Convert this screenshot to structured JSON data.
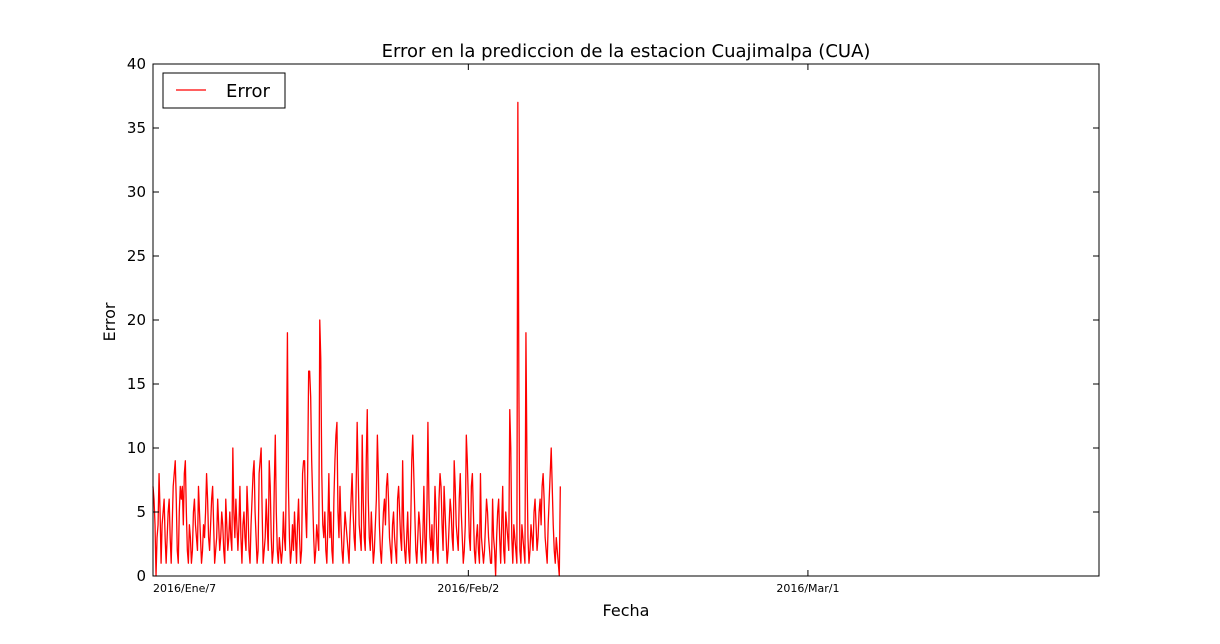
{
  "chart_data": {
    "type": "line",
    "title": "Error en la prediccion de la estacion Cuajimalpa (CUA)",
    "xlabel": "Fecha",
    "ylabel": "Error",
    "ylim": [
      0,
      40
    ],
    "yticks": [
      0,
      5,
      10,
      15,
      20,
      25,
      30,
      35,
      40
    ],
    "xlim": [
      "2016-01-07T00:00",
      "2016-03-25T00:00"
    ],
    "xticks": [
      {
        "date": "2016-01-07T00:00",
        "label": "2016/Ene/7"
      },
      {
        "date": "2016-02-02T00:00",
        "label": "2016/Feb/2"
      },
      {
        "date": "2016-03-01T00:00",
        "label": "2016/Mar/1"
      }
    ],
    "grid": false,
    "legend": {
      "position": "top-left",
      "entries": [
        "Error"
      ]
    },
    "series": [
      {
        "name": "Error",
        "color": "#ff0000",
        "start": "2016-01-07T00:00",
        "step_hours": 2,
        "values": [
          7,
          6,
          4,
          0,
          3,
          4,
          8,
          5,
          1,
          4,
          5,
          6,
          3,
          1,
          3,
          5,
          6,
          3,
          1,
          4,
          7,
          8,
          9,
          6,
          2,
          1,
          5,
          7,
          6,
          7,
          4,
          8,
          9,
          5,
          2,
          1,
          4,
          3,
          1,
          2,
          5,
          6,
          4,
          3,
          2,
          7,
          5,
          3,
          1,
          2,
          4,
          3,
          5,
          8,
          6,
          3,
          2,
          4,
          6,
          7,
          4,
          1,
          2,
          3,
          6,
          4,
          2,
          3,
          5,
          4,
          2,
          1,
          6,
          4,
          2,
          3,
          5,
          3,
          2,
          10,
          5,
          3,
          6,
          4,
          2,
          4,
          7,
          3,
          1,
          4,
          5,
          3,
          2,
          7,
          5,
          2,
          1,
          4,
          6,
          8,
          9,
          5,
          3,
          1,
          2,
          8,
          9,
          10,
          5,
          1,
          2,
          3,
          6,
          4,
          2,
          9,
          7,
          3,
          1,
          2,
          7,
          11,
          5,
          2,
          1,
          3,
          2,
          1,
          2,
          5,
          3,
          2,
          9,
          19,
          7,
          3,
          1,
          2,
          4,
          2,
          5,
          3,
          1,
          4,
          6,
          3,
          1,
          2,
          8,
          9,
          9,
          5,
          3,
          8,
          16,
          16,
          14,
          9,
          6,
          3,
          1,
          2,
          4,
          3,
          2,
          20,
          17,
          8,
          4,
          3,
          5,
          2,
          1,
          4,
          8,
          3,
          5,
          2,
          1,
          6,
          9,
          11,
          12,
          5,
          3,
          7,
          4,
          2,
          1,
          3,
          5,
          4,
          3,
          2,
          1,
          4,
          6,
          8,
          5,
          3,
          2,
          7,
          12,
          8,
          4,
          3,
          2,
          11,
          6,
          3,
          2,
          9,
          13,
          6,
          3,
          2,
          5,
          3,
          1,
          2,
          4,
          6,
          11,
          8,
          4,
          2,
          1,
          3,
          5,
          6,
          4,
          7,
          8,
          6,
          3,
          2,
          1,
          4,
          5,
          3,
          2,
          1,
          6,
          7,
          5,
          3,
          2,
          9,
          4,
          2,
          1,
          3,
          5,
          2,
          1,
          4,
          9,
          11,
          8,
          5,
          2,
          1,
          3,
          5,
          4,
          2,
          1,
          3,
          7,
          3,
          1,
          5,
          12,
          6,
          3,
          2,
          4,
          1,
          3,
          7,
          5,
          2,
          1,
          6,
          8,
          7,
          4,
          2,
          7,
          5,
          3,
          1,
          2,
          4,
          6,
          5,
          3,
          2,
          9,
          7,
          4,
          3,
          2,
          6,
          8,
          5,
          3,
          1,
          2,
          4,
          11,
          9,
          6,
          3,
          2,
          7,
          8,
          5,
          2,
          1,
          3,
          4,
          2,
          1,
          8,
          3,
          2,
          1,
          2,
          4,
          6,
          5,
          3,
          2,
          1,
          1,
          6,
          3,
          2,
          0,
          3,
          5,
          6,
          3,
          1,
          4,
          7,
          2,
          1,
          5,
          4,
          3,
          2,
          13,
          10,
          3,
          1,
          4,
          3,
          2,
          1,
          37,
          15,
          2,
          1,
          4,
          3,
          2,
          1,
          19,
          9,
          3,
          1,
          2,
          4,
          3,
          2,
          5,
          6,
          4,
          2,
          3,
          5,
          6,
          4,
          7,
          8,
          6,
          3,
          2,
          1,
          4,
          6,
          8,
          10,
          7,
          4,
          2,
          1,
          3,
          2,
          1,
          0,
          7
        ]
      }
    ]
  }
}
